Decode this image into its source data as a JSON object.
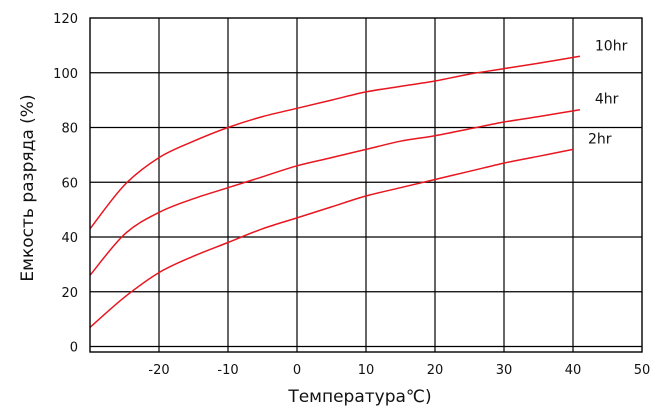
{
  "chart_data": {
    "type": "line",
    "xlabel": "Температура℃)",
    "ylabel": "Емкость разряда (%)",
    "xlim": [
      -30,
      50
    ],
    "ylim": [
      -2,
      120
    ],
    "x_ticks": [
      {
        "value": -20,
        "label": "-20"
      },
      {
        "value": -10,
        "label": "-10"
      },
      {
        "value": 0,
        "label": "0"
      },
      {
        "value": 10,
        "label": "10"
      },
      {
        "value": 20,
        "label": "20"
      },
      {
        "value": 30,
        "label": "30"
      },
      {
        "value": 40,
        "label": "40"
      },
      {
        "value": 50,
        "label": "50"
      }
    ],
    "y_ticks": [
      {
        "value": 0,
        "label": "0"
      },
      {
        "value": 20,
        "label": "20"
      },
      {
        "value": 40,
        "label": "40"
      },
      {
        "value": 60,
        "label": "60"
      },
      {
        "value": 80,
        "label": "80"
      },
      {
        "value": 100,
        "label": "100"
      },
      {
        "value": 120,
        "label": "120"
      }
    ],
    "grid": true,
    "series_color": "#e8161f",
    "series": [
      {
        "name": "10hr",
        "x": [
          -30,
          -25,
          -20,
          -15,
          -10,
          -5,
          0,
          5,
          10,
          15,
          20,
          25,
          30,
          35,
          41
        ],
        "values": [
          43,
          59,
          69,
          75,
          80,
          84,
          87,
          90,
          93,
          95,
          97,
          99.5,
          101.5,
          103.5,
          106
        ]
      },
      {
        "name": "4hr",
        "x": [
          -30,
          -25,
          -20,
          -15,
          -10,
          -5,
          0,
          5,
          10,
          15,
          20,
          25,
          30,
          35,
          41
        ],
        "values": [
          26,
          41,
          49,
          54,
          58,
          62,
          66,
          69,
          72,
          75,
          77,
          79.5,
          82,
          84,
          86.5
        ]
      },
      {
        "name": "2hr",
        "x": [
          -30,
          -25,
          -20,
          -15,
          -10,
          -5,
          0,
          5,
          10,
          15,
          20,
          25,
          30,
          35,
          40
        ],
        "values": [
          7,
          18,
          27,
          33,
          38,
          43,
          47,
          51,
          55,
          58,
          61,
          64,
          67,
          69.5,
          72
        ]
      }
    ]
  }
}
